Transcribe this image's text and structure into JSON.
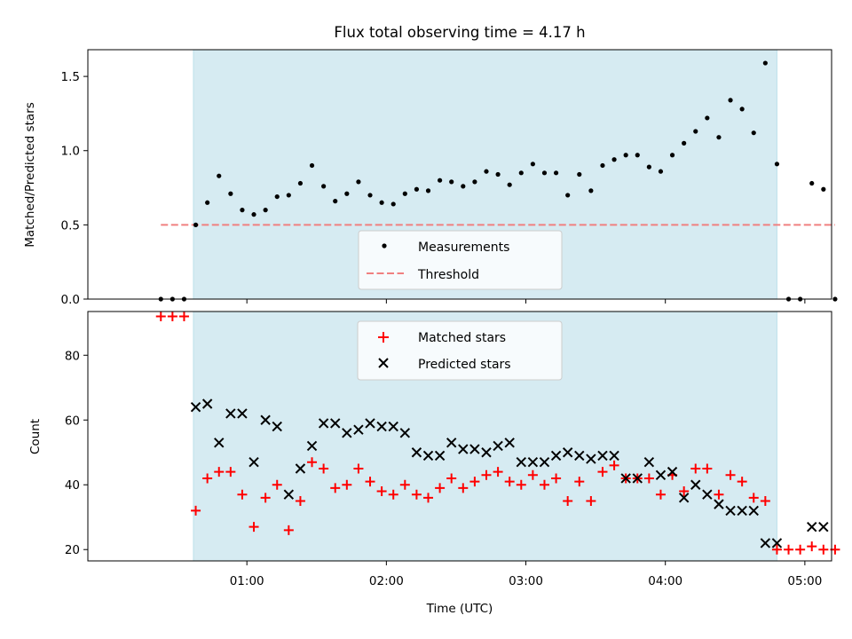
{
  "figure": {
    "title": "Flux total observing time = 4.17 h",
    "xlabel": "Time (UTC)",
    "x_ticks": [
      "01:00",
      "02:00",
      "03:00",
      "04:00",
      "05:00"
    ]
  },
  "chart_data": [
    {
      "type": "scatter",
      "ylabel": "Matched/Predicted stars",
      "ylim": [
        0,
        1.68
      ],
      "yticks": [
        "0.0",
        "0.5",
        "1.0",
        "1.5"
      ],
      "xlim_minutes_utc": [
        -8.4,
        311.5
      ],
      "shaded_span_utc": [
        "00:37",
        "04:48"
      ],
      "legend_position": "lower center",
      "threshold": {
        "name": "Threshold",
        "value": 0.5,
        "x_range_utc": [
          "00:23",
          "05:13"
        ],
        "color": "#f08080"
      },
      "series": [
        {
          "name": "Measurements",
          "color": "#000000",
          "x": [
            23,
            28,
            33,
            38,
            43,
            48,
            53,
            58,
            63,
            68,
            73,
            78,
            83,
            88,
            93,
            98,
            103,
            108,
            113,
            118,
            123,
            128,
            133,
            138,
            143,
            148,
            153,
            158,
            163,
            168,
            173,
            178,
            183,
            188,
            193,
            198,
            203,
            208,
            213,
            218,
            223,
            228,
            233,
            238,
            243,
            248,
            253,
            258,
            263,
            268,
            273,
            278,
            283,
            288,
            293,
            298,
            303,
            308,
            313
          ],
          "y": [
            0,
            0,
            0,
            0.5,
            0.65,
            0.83,
            0.71,
            0.6,
            0.57,
            0.6,
            0.69,
            0.7,
            0.78,
            0.9,
            0.76,
            0.66,
            0.71,
            0.79,
            0.7,
            0.65,
            0.64,
            0.71,
            0.74,
            0.73,
            0.8,
            0.79,
            0.76,
            0.79,
            0.86,
            0.84,
            0.77,
            0.85,
            0.91,
            0.85,
            0.85,
            0.7,
            0.84,
            0.73,
            0.9,
            0.94,
            0.97,
            0.97,
            0.89,
            0.86,
            0.97,
            1.05,
            1.13,
            1.22,
            1.09,
            1.34,
            1.28,
            1.12,
            1.59,
            0.91,
            0,
            0,
            0.78,
            0.74,
            0
          ]
        }
      ]
    },
    {
      "type": "scatter",
      "ylabel": "Count",
      "ylim": [
        16.5,
        93.5
      ],
      "yticks": [
        "20",
        "40",
        "60",
        "80"
      ],
      "legend_position": "upper center",
      "series": [
        {
          "name": "Matched stars",
          "color": "#ff0000",
          "marker": "+",
          "x": [
            23,
            28,
            33,
            38,
            43,
            48,
            53,
            58,
            63,
            68,
            73,
            78,
            83,
            88,
            93,
            98,
            103,
            108,
            113,
            118,
            123,
            128,
            133,
            138,
            143,
            148,
            153,
            158,
            163,
            168,
            173,
            178,
            183,
            188,
            193,
            198,
            203,
            208,
            213,
            218,
            223,
            228,
            233,
            238,
            243,
            248,
            253,
            258,
            263,
            268,
            273,
            278,
            283,
            288,
            293,
            298,
            303,
            308,
            313
          ],
          "y": [
            92,
            92,
            92,
            32,
            42,
            44,
            44,
            37,
            27,
            36,
            40,
            26,
            35,
            47,
            45,
            39,
            40,
            45,
            41,
            38,
            37,
            40,
            37,
            36,
            39,
            42,
            39,
            41,
            43,
            44,
            41,
            40,
            43,
            40,
            42,
            35,
            41,
            35,
            44,
            46,
            42,
            42,
            42,
            37,
            43,
            38,
            45,
            45,
            37,
            43,
            41,
            36,
            35,
            20,
            20,
            20,
            21,
            20,
            20
          ]
        },
        {
          "name": "Predicted stars",
          "color": "#000000",
          "marker": "x",
          "x": [
            38,
            43,
            48,
            53,
            58,
            63,
            68,
            73,
            78,
            83,
            88,
            93,
            98,
            103,
            108,
            113,
            118,
            123,
            128,
            133,
            138,
            143,
            148,
            153,
            158,
            163,
            168,
            173,
            178,
            183,
            188,
            193,
            198,
            203,
            208,
            213,
            218,
            223,
            228,
            233,
            238,
            243,
            248,
            253,
            258,
            263,
            268,
            273,
            278,
            283,
            288,
            303,
            308
          ],
          "y": [
            64,
            65,
            53,
            62,
            62,
            47,
            60,
            58,
            37,
            45,
            52,
            59,
            59,
            56,
            57,
            59,
            58,
            58,
            56,
            50,
            49,
            49,
            53,
            51,
            51,
            50,
            52,
            53,
            47,
            47,
            47,
            49,
            50,
            49,
            48,
            49,
            49,
            42,
            42,
            47,
            43,
            44,
            36,
            40,
            37,
            34,
            32,
            32,
            32,
            22,
            22,
            27,
            27
          ]
        }
      ]
    }
  ]
}
